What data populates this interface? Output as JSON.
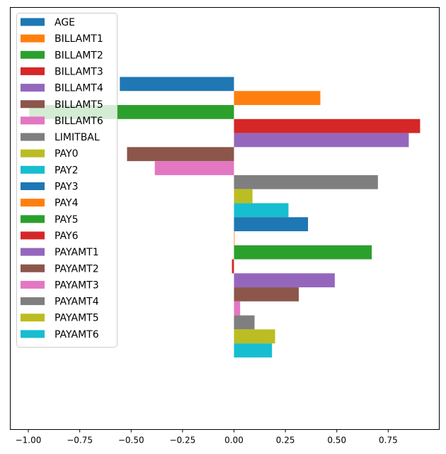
{
  "chart_data": {
    "type": "bar",
    "orientation": "horizontal",
    "xlim": [
      -1.1,
      1.0
    ],
    "x_ticks": [
      {
        "value": -1.0,
        "label": "−1.00"
      },
      {
        "value": -0.75,
        "label": "−0.75"
      },
      {
        "value": -0.5,
        "label": "−0.50"
      },
      {
        "value": -0.25,
        "label": "−0.25"
      },
      {
        "value": 0.0,
        "label": "0.00"
      },
      {
        "value": 0.25,
        "label": "0.25"
      },
      {
        "value": 0.5,
        "label": "0.50"
      },
      {
        "value": 0.75,
        "label": "0.75"
      }
    ],
    "grid": false,
    "legend_position": "top-left",
    "series": [
      {
        "name": "AGE",
        "value": -0.555,
        "color": "#1f77b4"
      },
      {
        "name": "BILLAMT1",
        "value": 0.42,
        "color": "#ff7f0e"
      },
      {
        "name": "BILLAMT2",
        "value": -0.995,
        "color": "#2ca02c"
      },
      {
        "name": "BILLAMT3",
        "value": 0.905,
        "color": "#d62728"
      },
      {
        "name": "BILLAMT4",
        "value": 0.85,
        "color": "#9467bd"
      },
      {
        "name": "BILLAMT5",
        "value": -0.52,
        "color": "#8c564b"
      },
      {
        "name": "BILLAMT6",
        "value": -0.385,
        "color": "#e377c2"
      },
      {
        "name": "LIMITBAL",
        "value": 0.7,
        "color": "#7f7f7f"
      },
      {
        "name": "PAY0",
        "value": 0.09,
        "color": "#bcbd22"
      },
      {
        "name": "PAY2",
        "value": 0.265,
        "color": "#17becf"
      },
      {
        "name": "PAY3",
        "value": 0.36,
        "color": "#1f77b4"
      },
      {
        "name": "PAY4",
        "value": 0.003,
        "color": "#ff7f0e"
      },
      {
        "name": "PAY5",
        "value": 0.67,
        "color": "#2ca02c"
      },
      {
        "name": "PAY6",
        "value": -0.01,
        "color": "#d62728"
      },
      {
        "name": "PAYAMT1",
        "value": 0.49,
        "color": "#9467bd"
      },
      {
        "name": "PAYAMT2",
        "value": 0.315,
        "color": "#8c564b"
      },
      {
        "name": "PAYAMT3",
        "value": 0.03,
        "color": "#e377c2"
      },
      {
        "name": "PAYAMT4",
        "value": 0.1,
        "color": "#7f7f7f"
      },
      {
        "name": "PAYAMT5",
        "value": 0.2,
        "color": "#bcbd22"
      },
      {
        "name": "PAYAMT6",
        "value": 0.185,
        "color": "#17becf"
      }
    ]
  }
}
